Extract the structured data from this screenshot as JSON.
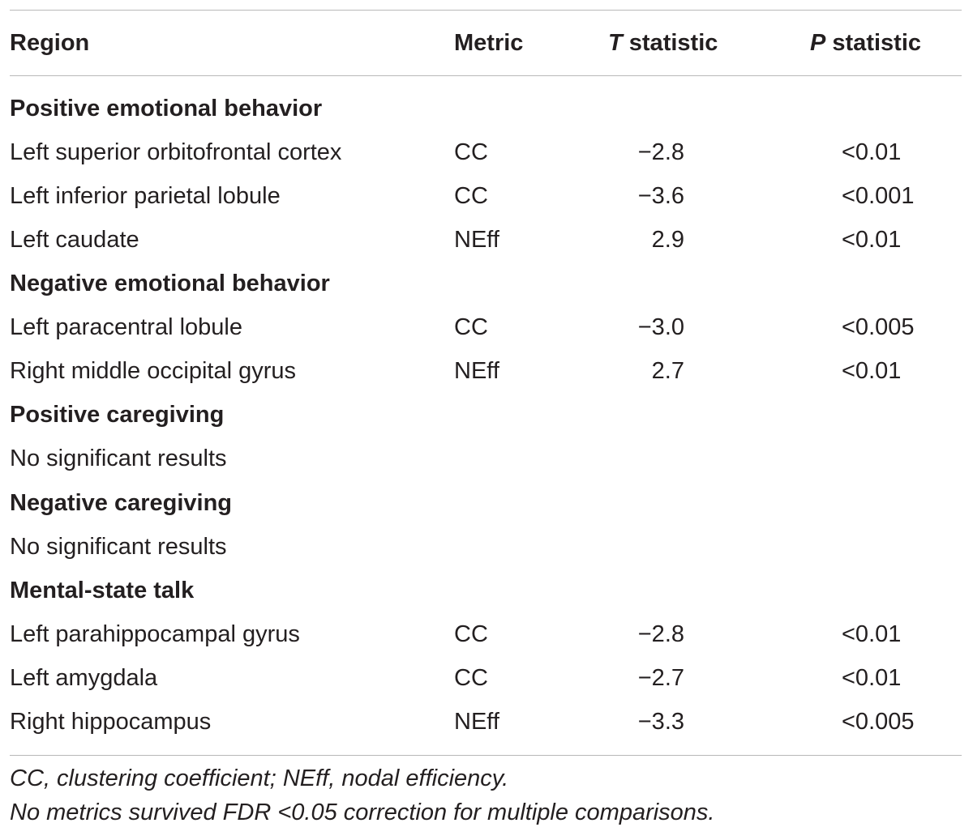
{
  "header": {
    "region": "Region",
    "metric": "Metric",
    "t_prefix": "T",
    "t_suffix": " statistic",
    "p_prefix": "P",
    "p_suffix": " statistic"
  },
  "sections": [
    {
      "title": "Positive emotional behavior",
      "rows": [
        {
          "region": "Left superior orbitofrontal cortex",
          "metric": "CC",
          "t": "−2.8",
          "p": "<0.01"
        },
        {
          "region": "Left inferior parietal lobule",
          "metric": "CC",
          "t": "−3.6",
          "p": "<0.001"
        },
        {
          "region": "Left caudate",
          "metric": "NEff",
          "t": "2.9",
          "p": "<0.01"
        }
      ]
    },
    {
      "title": "Negative emotional behavior",
      "rows": [
        {
          "region": "Left paracentral lobule",
          "metric": "CC",
          "t": "−3.0",
          "p": "<0.005"
        },
        {
          "region": "Right middle occipital gyrus",
          "metric": "NEff",
          "t": "2.7",
          "p": "<0.01"
        }
      ]
    },
    {
      "title": "Positive caregiving",
      "rows": [
        {
          "region": "No significant results",
          "metric": "",
          "t": "",
          "p": ""
        }
      ]
    },
    {
      "title": "Negative caregiving",
      "rows": [
        {
          "region": "No significant results",
          "metric": "",
          "t": "",
          "p": ""
        }
      ]
    },
    {
      "title": "Mental-state talk",
      "rows": [
        {
          "region": "Left parahippocampal gyrus",
          "metric": "CC",
          "t": "−2.8",
          "p": "<0.01"
        },
        {
          "region": "Left amygdala",
          "metric": "CC",
          "t": "−2.7",
          "p": "<0.01"
        },
        {
          "region": "Right hippocampus",
          "metric": "NEff",
          "t": "−3.3",
          "p": "<0.005"
        }
      ]
    }
  ],
  "footnotes": [
    "CC, clustering coefficient; NEff, nodal efficiency.",
    "No metrics survived FDR <0.05 correction for multiple comparisons."
  ]
}
